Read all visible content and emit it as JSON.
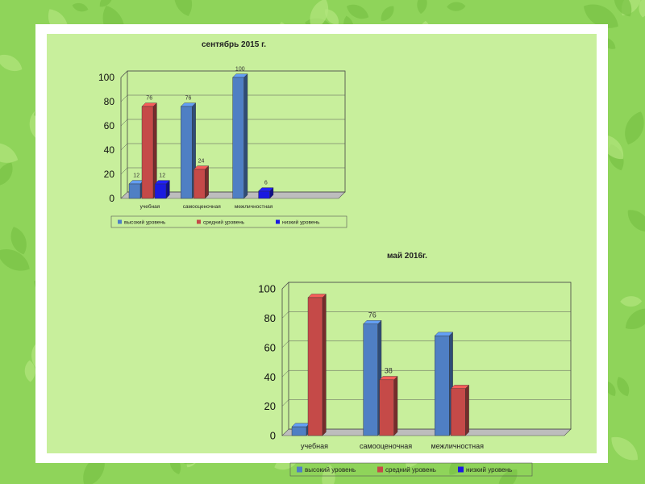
{
  "colors": {
    "high": "#4f7fc4",
    "mid": "#c54a48",
    "low": "#1a1ae0",
    "background": "#8fd45a",
    "panel": "#c8ef9c"
  },
  "chart_data": [
    {
      "type": "bar",
      "title": "сентябрь 2015 г.",
      "categories": [
        "учебная",
        "самооценочная",
        "межличностная"
      ],
      "series": [
        {
          "name": "высокий уровень",
          "values": [
            12,
            76,
            100
          ]
        },
        {
          "name": "средний уровень",
          "values": [
            76,
            24,
            null
          ]
        },
        {
          "name": "низкий уровень",
          "values": [
            12,
            null,
            6
          ]
        }
      ],
      "ylim": [
        0,
        100
      ],
      "yticks": [
        0,
        20,
        40,
        60,
        80,
        100
      ],
      "grid": true,
      "legend": "bottom"
    },
    {
      "type": "bar",
      "title": "май 2016г.",
      "categories": [
        "учебная",
        "самооценочная",
        "межличностная"
      ],
      "series": [
        {
          "name": "высокий уровень",
          "values": [
            6,
            76,
            68
          ]
        },
        {
          "name": "средний уровень",
          "values": [
            94,
            38,
            32
          ]
        },
        {
          "name": "низкий уровень",
          "values": [
            null,
            null,
            null
          ]
        }
      ],
      "labels_shown": [
        [
          null,
          94,
          null
        ],
        [
          null,
          38,
          null
        ],
        [
          null,
          32,
          null
        ]
      ],
      "ylim": [
        0,
        100
      ],
      "yticks": [
        0,
        20,
        40,
        60,
        80,
        100
      ],
      "grid": true,
      "legend": "bottom"
    }
  ]
}
